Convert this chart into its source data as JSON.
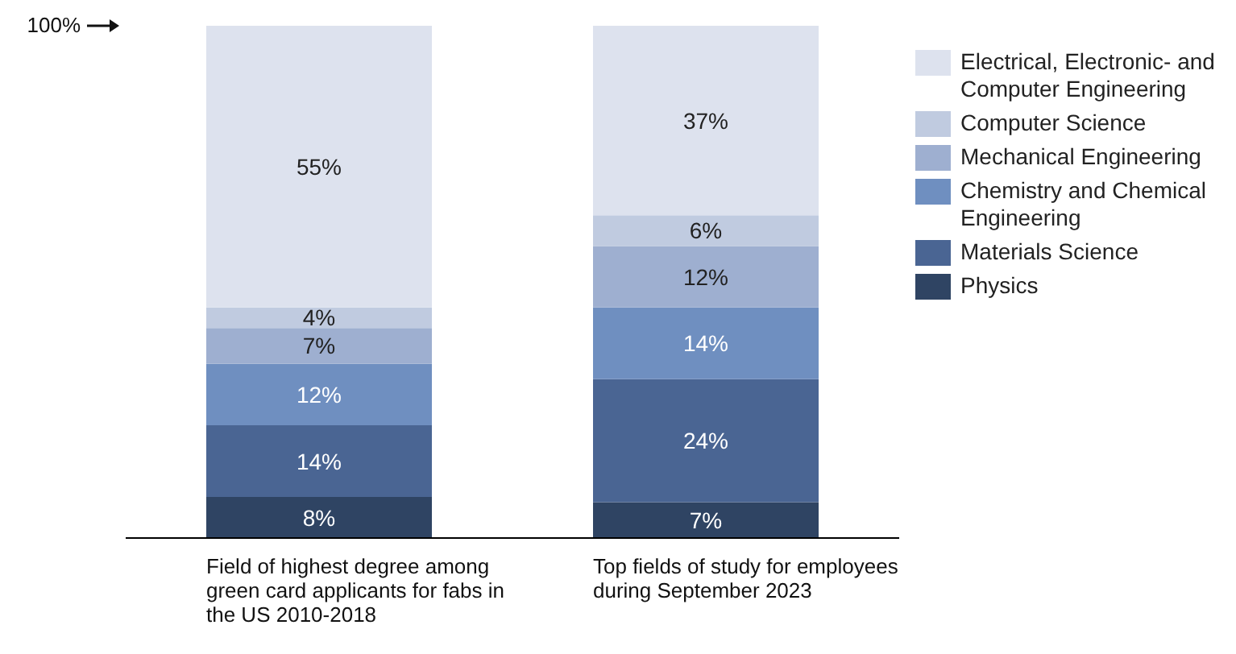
{
  "chart_data": {
    "type": "bar",
    "stacked": true,
    "categories": [
      "Field of highest degree among green card applicants for fabs in the US 2010-2018",
      "Top fields of study for employees during September 2023"
    ],
    "series": [
      {
        "name": "Physics",
        "color": "#2f4463",
        "values": [
          8,
          7
        ],
        "value_labels": [
          "8%",
          "7%"
        ]
      },
      {
        "name": "Materials Science",
        "color": "#4a6593",
        "values": [
          14,
          24
        ],
        "value_labels": [
          "14%",
          "24%"
        ]
      },
      {
        "name": "Chemistry and Chemical Engineering",
        "color": "#6f8fc0",
        "values": [
          12,
          14
        ],
        "value_labels": [
          "12%",
          "14%"
        ]
      },
      {
        "name": "Mechanical Engineering",
        "color": "#9eafd0",
        "values": [
          7,
          12
        ],
        "value_labels": [
          "7%",
          "12%"
        ]
      },
      {
        "name": "Computer Science",
        "color": "#c0cbe0",
        "values": [
          4,
          6
        ],
        "value_labels": [
          "4%",
          "6%"
        ]
      },
      {
        "name": "Electrical, Electronic- and Computer Engineering",
        "color": "#dde2ee",
        "values": [
          55,
          37
        ],
        "value_labels": [
          "55%",
          "37%"
        ]
      }
    ],
    "legend": "right",
    "tick_labels": "x",
    "annotations": [
      "100%"
    ]
  }
}
